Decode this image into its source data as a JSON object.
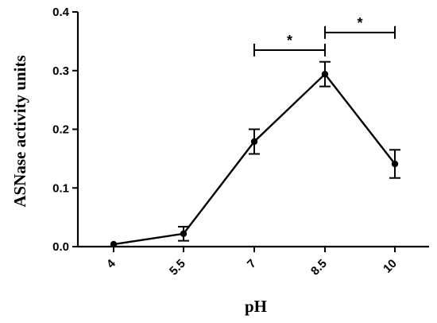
{
  "chart_data": {
    "type": "line",
    "x_tick_labels": [
      "4",
      "5.5",
      "7",
      "8.5",
      "10"
    ],
    "y_tick_labels": [
      "0.0",
      "0.1",
      "0.2",
      "0.3",
      "0.4"
    ],
    "y_ticks": [
      0.0,
      0.1,
      0.2,
      0.3,
      0.4
    ],
    "ylim": [
      0,
      0.4
    ],
    "xlabel": "pH",
    "ylabel": "ASNase activity units",
    "grid": false,
    "series": [
      {
        "x": [
          4,
          5.5,
          7,
          8.5,
          10
        ],
        "values": [
          0.004,
          0.022,
          0.179,
          0.294,
          0.141
        ],
        "error": [
          0.0,
          0.012,
          0.021,
          0.021,
          0.024
        ]
      }
    ],
    "significance": [
      {
        "from": "7",
        "to": "8.5",
        "y": 0.335,
        "label": "*"
      },
      {
        "from": "8.5",
        "to": "10",
        "y": 0.365,
        "label": "*"
      }
    ]
  }
}
